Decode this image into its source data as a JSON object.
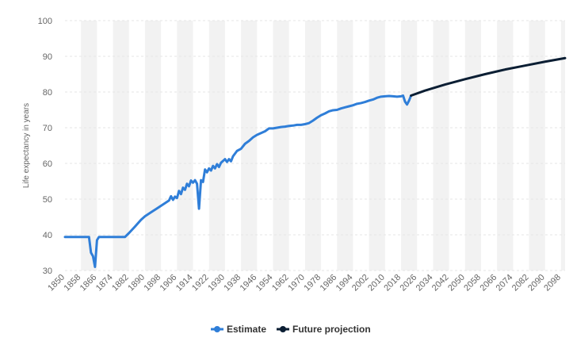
{
  "chart_data": {
    "type": "line",
    "title": "",
    "xlabel": "",
    "ylabel": "Life expectancy in years",
    "ylim": [
      30,
      100
    ],
    "xlim": [
      1850,
      2100
    ],
    "yticks": [
      30,
      40,
      50,
      60,
      70,
      80,
      90,
      100
    ],
    "xticks": [
      1850,
      1858,
      1866,
      1874,
      1882,
      1890,
      1898,
      1906,
      1914,
      1922,
      1930,
      1938,
      1946,
      1954,
      1962,
      1970,
      1978,
      1986,
      1994,
      2002,
      2010,
      2018,
      2026,
      2034,
      2042,
      2050,
      2058,
      2066,
      2074,
      2082,
      2090,
      2098
    ],
    "grid": "alternating vertical bands",
    "legend_position": "bottom-center",
    "colors": {
      "estimate": "#2f7ed8",
      "projection": "#0b1e33",
      "band": "#f2f2f2",
      "gridline": "#e6e6e6"
    },
    "series": [
      {
        "name": "Estimate",
        "points": [
          [
            1850,
            39.4
          ],
          [
            1856,
            39.4
          ],
          [
            1860,
            39.4
          ],
          [
            1862,
            39.4
          ],
          [
            1863,
            35
          ],
          [
            1864,
            34
          ],
          [
            1865,
            31
          ],
          [
            1866,
            38.5
          ],
          [
            1867,
            39.4
          ],
          [
            1870,
            39.4
          ],
          [
            1874,
            39.4
          ],
          [
            1878,
            39.4
          ],
          [
            1880,
            39.4
          ],
          [
            1882,
            40.5
          ],
          [
            1885,
            42.3
          ],
          [
            1888,
            44.2
          ],
          [
            1890,
            45.2
          ],
          [
            1893,
            46.3
          ],
          [
            1896,
            47.4
          ],
          [
            1899,
            48.5
          ],
          [
            1902,
            49.6
          ],
          [
            1903,
            50.8
          ],
          [
            1904,
            49.8
          ],
          [
            1905,
            50.7
          ],
          [
            1906,
            50.3
          ],
          [
            1907,
            52.3
          ],
          [
            1908,
            51.4
          ],
          [
            1909,
            53.2
          ],
          [
            1910,
            52.6
          ],
          [
            1911,
            54.3
          ],
          [
            1912,
            53.6
          ],
          [
            1913,
            55.2
          ],
          [
            1914,
            54.6
          ],
          [
            1915,
            55.3
          ],
          [
            1916,
            54.3
          ],
          [
            1917,
            47.3
          ],
          [
            1918,
            55.3
          ],
          [
            1919,
            54.8
          ],
          [
            1920,
            58.3
          ],
          [
            1921,
            57.5
          ],
          [
            1922,
            58.6
          ],
          [
            1923,
            58.0
          ],
          [
            1924,
            59.3
          ],
          [
            1925,
            58.6
          ],
          [
            1926,
            59.8
          ],
          [
            1927,
            59.0
          ],
          [
            1928,
            60.2
          ],
          [
            1930,
            61.2
          ],
          [
            1931,
            60.4
          ],
          [
            1932,
            61.2
          ],
          [
            1933,
            60.6
          ],
          [
            1934,
            62.0
          ],
          [
            1936,
            63.5
          ],
          [
            1938,
            64.1
          ],
          [
            1940,
            65.5
          ],
          [
            1942,
            66.3
          ],
          [
            1944,
            67.3
          ],
          [
            1946,
            68.0
          ],
          [
            1948,
            68.5
          ],
          [
            1950,
            69.0
          ],
          [
            1952,
            69.8
          ],
          [
            1954,
            69.8
          ],
          [
            1956,
            70.0
          ],
          [
            1958,
            70.2
          ],
          [
            1960,
            70.3
          ],
          [
            1962,
            70.5
          ],
          [
            1964,
            70.6
          ],
          [
            1966,
            70.8
          ],
          [
            1968,
            70.8
          ],
          [
            1970,
            71.0
          ],
          [
            1972,
            71.3
          ],
          [
            1974,
            72.0
          ],
          [
            1976,
            72.8
          ],
          [
            1978,
            73.5
          ],
          [
            1980,
            74.0
          ],
          [
            1982,
            74.6
          ],
          [
            1984,
            74.9
          ],
          [
            1986,
            75.0
          ],
          [
            1988,
            75.4
          ],
          [
            1990,
            75.7
          ],
          [
            1992,
            76.0
          ],
          [
            1994,
            76.3
          ],
          [
            1996,
            76.7
          ],
          [
            1998,
            76.9
          ],
          [
            2000,
            77.2
          ],
          [
            2002,
            77.6
          ],
          [
            2004,
            77.9
          ],
          [
            2006,
            78.4
          ],
          [
            2008,
            78.7
          ],
          [
            2010,
            78.8
          ],
          [
            2012,
            78.9
          ],
          [
            2014,
            78.8
          ],
          [
            2016,
            78.7
          ],
          [
            2018,
            78.8
          ],
          [
            2019,
            79.0
          ],
          [
            2020,
            77.3
          ],
          [
            2021,
            76.5
          ],
          [
            2022,
            77.6
          ],
          [
            2023,
            79.0
          ]
        ]
      },
      {
        "name": "Future projection",
        "points": [
          [
            2023,
            79.0
          ],
          [
            2030,
            80.4
          ],
          [
            2040,
            82.1
          ],
          [
            2050,
            83.6
          ],
          [
            2060,
            85.0
          ],
          [
            2070,
            86.3
          ],
          [
            2080,
            87.4
          ],
          [
            2090,
            88.5
          ],
          [
            2100,
            89.5
          ]
        ]
      }
    ]
  }
}
